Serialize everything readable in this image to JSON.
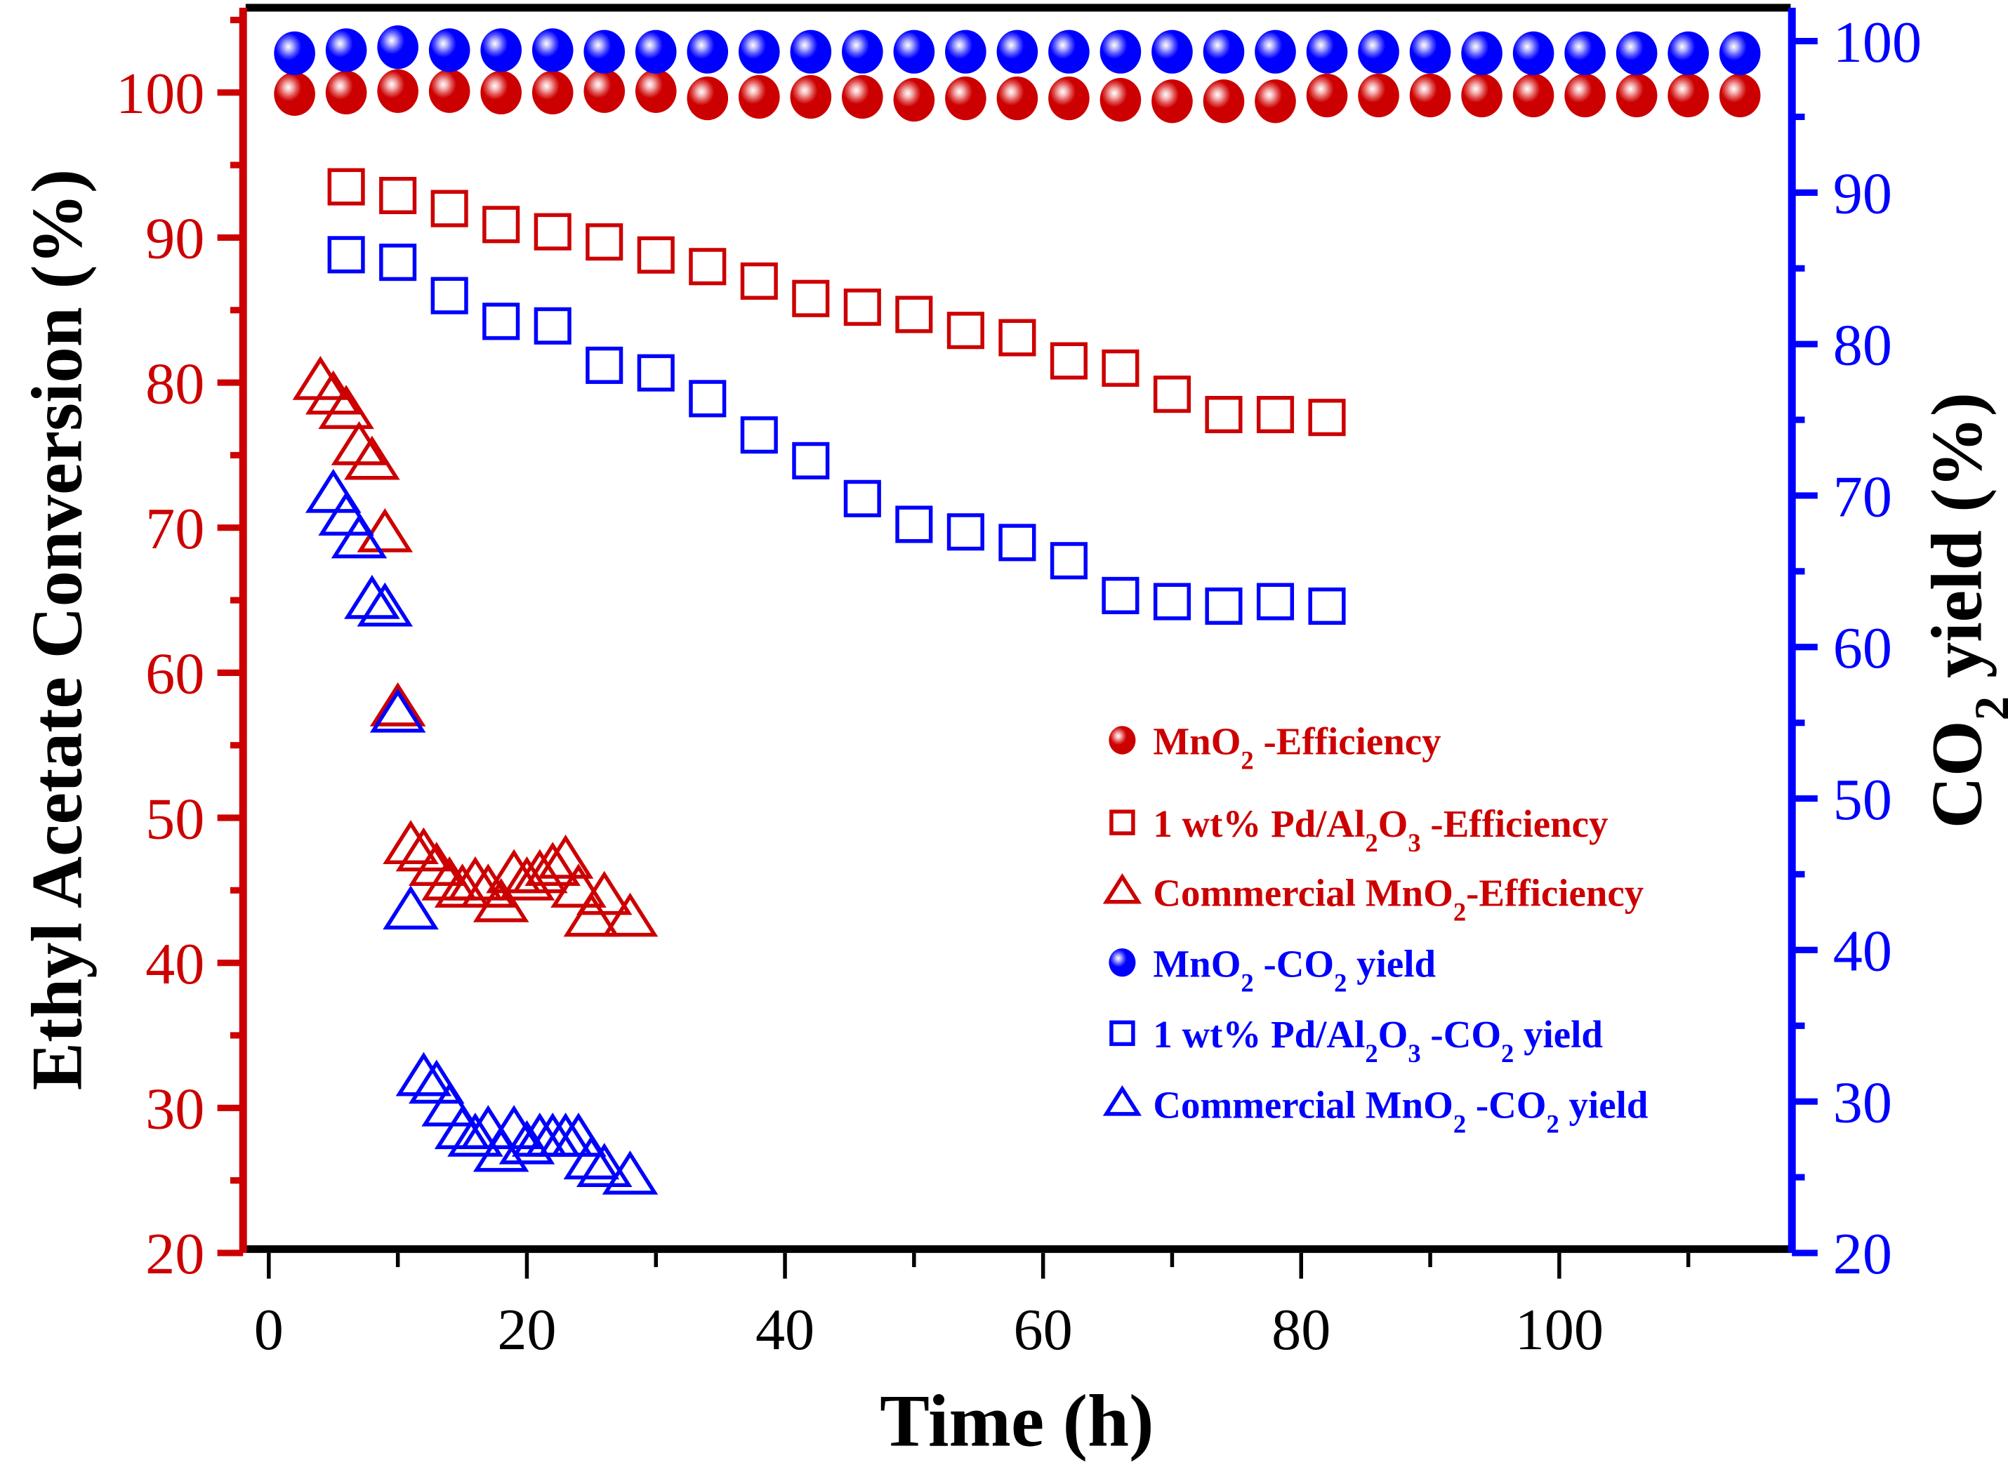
{
  "chart_data": {
    "type": "scatter",
    "title": "",
    "xlabel": "Time (h)",
    "ylabel_left": "Ethyl Acetate Conversion (%)",
    "ylabel_right": "CO2 yield (%)",
    "ylabel_right_parts": {
      "main": "CO",
      "sub": "2",
      "rest": " yield (%)"
    },
    "xlim": [
      -2,
      118
    ],
    "ylim_left": [
      20,
      106
    ],
    "ylim_right": [
      20,
      102
    ],
    "x_ticks": [
      0,
      20,
      40,
      60,
      80,
      100
    ],
    "x_tick_labels": [
      "0",
      "20",
      "40",
      "60",
      "80",
      "100"
    ],
    "x_minor_ticks": [
      10,
      30,
      50,
      70,
      90,
      110
    ],
    "y_left_ticks": [
      20,
      30,
      40,
      50,
      60,
      70,
      80,
      90,
      100
    ],
    "y_left_tick_labels": [
      "20",
      "30",
      "40",
      "50",
      "60",
      "70",
      "80",
      "90",
      "100"
    ],
    "y_right_ticks": [
      20,
      30,
      40,
      50,
      60,
      70,
      80,
      90,
      100
    ],
    "y_right_tick_labels": [
      "20",
      "30",
      "40",
      "50",
      "60",
      "70",
      "80",
      "90",
      "100"
    ],
    "grid": false,
    "legend_position": "center-right",
    "colors": {
      "red": "#cc0000",
      "blue": "#0000ff",
      "frame": "#000000"
    },
    "series": [
      {
        "name": "MnO2 -Efficiency",
        "label_parts": [
          "MnO",
          "2",
          " -Efficiency"
        ],
        "axis": "left",
        "color": "#cc0000",
        "marker": "sphere",
        "x": [
          2,
          6,
          10,
          14,
          18,
          22,
          26,
          30,
          34,
          38,
          42,
          46,
          50,
          54,
          58,
          62,
          66,
          70,
          74,
          78,
          82,
          86,
          90,
          94,
          98,
          102,
          106,
          110,
          114
        ],
        "y": [
          99.9,
          100.0,
          100.1,
          100.1,
          100.0,
          100.0,
          100.1,
          100.1,
          99.6,
          99.7,
          99.7,
          99.7,
          99.5,
          99.6,
          99.6,
          99.6,
          99.5,
          99.4,
          99.4,
          99.4,
          99.8,
          99.8,
          99.8,
          99.8,
          99.8,
          99.8,
          99.8,
          99.8,
          99.8
        ]
      },
      {
        "name": "1 wt% Pd/Al2O3 -Efficiency",
        "label_parts": [
          "1 wt% Pd/Al",
          "2",
          "O",
          "3",
          " -Efficiency"
        ],
        "axis": "left",
        "color": "#cc0000",
        "marker": "square",
        "x": [
          6,
          10,
          14,
          18,
          22,
          26,
          30,
          34,
          38,
          42,
          46,
          50,
          54,
          58,
          62,
          66,
          70,
          74,
          78,
          82
        ],
        "y": [
          93.5,
          92.9,
          92.0,
          90.9,
          90.4,
          89.7,
          88.8,
          88.0,
          87.0,
          85.8,
          85.2,
          84.7,
          83.6,
          83.1,
          81.5,
          81.0,
          79.2,
          77.8,
          77.8,
          77.6
        ]
      },
      {
        "name": "Commercial MnO2-Efficiency",
        "label_parts": [
          "Commercial MnO",
          "2",
          "-Efficiency"
        ],
        "axis": "left",
        "color": "#cc0000",
        "marker": "triangle",
        "x": [
          4,
          5,
          6,
          7,
          8,
          9,
          10,
          11,
          12,
          13,
          14,
          15,
          16,
          17,
          18,
          19,
          20,
          21,
          22,
          23,
          24,
          25,
          26,
          28
        ],
        "y": [
          80.0,
          79.0,
          78.0,
          75.5,
          74.5,
          69.5,
          57.5,
          48.0,
          47.5,
          46.5,
          45.5,
          45.0,
          45.5,
          45.0,
          44.0,
          46.0,
          45.5,
          46.0,
          46.5,
          47.0,
          45.0,
          43.0,
          44.5,
          43.0
        ]
      },
      {
        "name": "MnO2 -CO2 yield",
        "label_parts": [
          "MnO",
          "2",
          " -CO",
          "2",
          " yield"
        ],
        "axis": "right",
        "color": "#0000ff",
        "marker": "sphere",
        "x": [
          2,
          6,
          10,
          14,
          18,
          22,
          26,
          30,
          34,
          38,
          42,
          46,
          50,
          54,
          58,
          62,
          66,
          70,
          74,
          78,
          82,
          86,
          90,
          94,
          98,
          102,
          106,
          110,
          114
        ],
        "y": [
          99.2,
          99.4,
          99.6,
          99.4,
          99.4,
          99.4,
          99.3,
          99.3,
          99.3,
          99.3,
          99.3,
          99.3,
          99.3,
          99.3,
          99.3,
          99.3,
          99.3,
          99.3,
          99.3,
          99.3,
          99.3,
          99.3,
          99.3,
          99.2,
          99.2,
          99.2,
          99.2,
          99.2,
          99.2
        ]
      },
      {
        "name": "1 wt% Pd/Al2O3 -CO2 yield",
        "label_parts": [
          "1 wt% Pd/Al",
          "2",
          "O",
          "3",
          " -CO",
          "2",
          " yield"
        ],
        "axis": "right",
        "color": "#0000ff",
        "marker": "square",
        "x": [
          6,
          10,
          14,
          18,
          22,
          26,
          30,
          34,
          38,
          42,
          46,
          50,
          54,
          58,
          62,
          66,
          70,
          74,
          78,
          82
        ],
        "y": [
          85.9,
          85.4,
          83.2,
          81.5,
          81.2,
          78.6,
          78.1,
          76.4,
          74.0,
          72.3,
          69.8,
          68.1,
          67.6,
          66.9,
          65.7,
          63.4,
          63.0,
          62.7,
          63.0,
          62.7
        ]
      },
      {
        "name": "Commercial MnO2 -CO2 yield",
        "label_parts": [
          "Commercial MnO",
          "2",
          " -CO",
          "2",
          " yield"
        ],
        "axis": "right",
        "color": "#0000ff",
        "marker": "triangle",
        "x": [
          5,
          6,
          7,
          8,
          9,
          10,
          11,
          12,
          13,
          14,
          15,
          16,
          17,
          18,
          19,
          20,
          21,
          22,
          23,
          24,
          25,
          26,
          28
        ],
        "y": [
          70.0,
          68.5,
          67.0,
          63.0,
          62.5,
          55.5,
          42.5,
          31.5,
          31.0,
          29.5,
          28.0,
          27.5,
          28.0,
          26.5,
          28.0,
          27.0,
          27.5,
          27.5,
          27.5,
          27.5,
          26.0,
          25.5,
          25.0
        ]
      }
    ]
  }
}
